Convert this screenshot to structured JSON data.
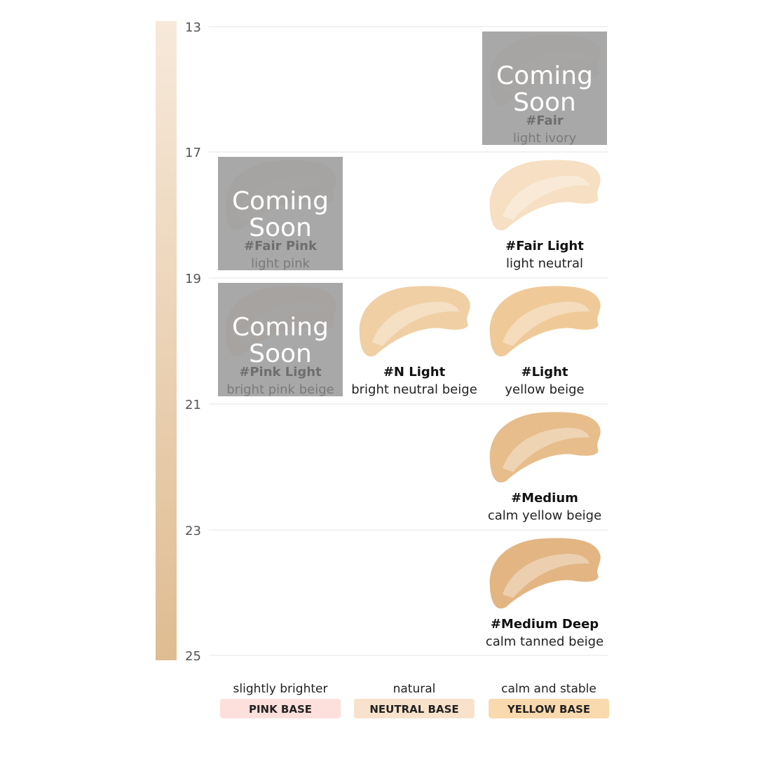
{
  "levels": [
    13,
    17,
    19,
    21,
    23,
    25
  ],
  "rows": [
    {
      "cells": [
        null,
        null,
        {
          "name": "#Fair",
          "description": "light ivory",
          "overlay": "Coming Soon",
          "color": "#f0dcc6"
        }
      ]
    },
    {
      "cells": [
        {
          "name": "#Fair Pink",
          "description": "light pink",
          "overlay": "Coming Soon",
          "color": "#ecd2c2"
        },
        null,
        {
          "name": "#Fair Light",
          "description": "light neutral",
          "color": "#f6dfc2"
        }
      ]
    },
    {
      "cells": [
        {
          "name": "#Pink Light",
          "description": "bright pink beige",
          "overlay": "Coming Soon",
          "color": "#e8ccb6"
        },
        {
          "name": "#N Light",
          "description": "bright neutral beige",
          "color": "#f0cfa5"
        },
        {
          "name": "#Light",
          "description": "yellow beige",
          "color": "#efca98"
        }
      ]
    },
    {
      "cells": [
        null,
        null,
        {
          "name": "#Medium",
          "description": "calm yellow beige",
          "color": "#e6bd8b"
        }
      ]
    },
    {
      "cells": [
        null,
        null,
        {
          "name": "#Medium Deep",
          "description": "calm tanned beige",
          "color": "#e2b583"
        }
      ]
    }
  ],
  "columns": [
    {
      "note": "slightly brighter",
      "label": "PINK BASE",
      "color": "#fde0dc"
    },
    {
      "note": "natural",
      "label": "NEUTRAL BASE",
      "color": "#f8e2cb"
    },
    {
      "note": "calm and stable",
      "label": "YELLOW BASE",
      "color": "#f9d9ae"
    }
  ]
}
